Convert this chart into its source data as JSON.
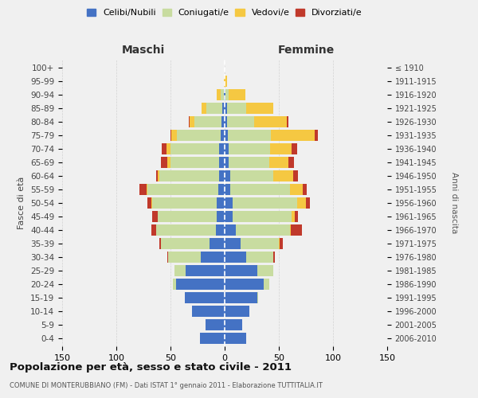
{
  "age_groups": [
    "0-4",
    "5-9",
    "10-14",
    "15-19",
    "20-24",
    "25-29",
    "30-34",
    "35-39",
    "40-44",
    "45-49",
    "50-54",
    "55-59",
    "60-64",
    "65-69",
    "70-74",
    "75-79",
    "80-84",
    "85-89",
    "90-94",
    "95-99",
    "100+"
  ],
  "birth_years": [
    "2006-2010",
    "2001-2005",
    "1996-2000",
    "1991-1995",
    "1986-1990",
    "1981-1985",
    "1976-1980",
    "1971-1975",
    "1966-1970",
    "1961-1965",
    "1956-1960",
    "1951-1955",
    "1946-1950",
    "1941-1945",
    "1936-1940",
    "1931-1935",
    "1926-1930",
    "1921-1925",
    "1916-1920",
    "1911-1915",
    "≤ 1910"
  ],
  "male_celibi": [
    23,
    18,
    30,
    37,
    45,
    36,
    22,
    14,
    8,
    7,
    7,
    6,
    5,
    5,
    5,
    4,
    3,
    2,
    1,
    0,
    0
  ],
  "male_coniugati": [
    0,
    0,
    0,
    0,
    3,
    10,
    30,
    45,
    55,
    55,
    60,
    65,
    55,
    45,
    45,
    40,
    25,
    15,
    3,
    0,
    0
  ],
  "male_vedovi": [
    0,
    0,
    0,
    0,
    0,
    0,
    0,
    0,
    0,
    0,
    1,
    1,
    2,
    3,
    4,
    5,
    4,
    4,
    3,
    1,
    0
  ],
  "male_divorziati": [
    0,
    0,
    0,
    0,
    0,
    0,
    1,
    1,
    5,
    5,
    3,
    7,
    1,
    6,
    4,
    1,
    1,
    0,
    0,
    0,
    0
  ],
  "female_celibi": [
    20,
    16,
    23,
    30,
    36,
    30,
    20,
    15,
    10,
    7,
    7,
    5,
    5,
    4,
    4,
    3,
    2,
    2,
    1,
    0,
    0
  ],
  "female_coniugati": [
    0,
    0,
    0,
    1,
    5,
    15,
    25,
    35,
    50,
    55,
    60,
    55,
    40,
    37,
    38,
    40,
    25,
    18,
    3,
    0,
    0
  ],
  "female_vedovi": [
    0,
    0,
    0,
    0,
    0,
    0,
    0,
    1,
    1,
    3,
    8,
    12,
    18,
    18,
    20,
    40,
    30,
    25,
    15,
    2,
    0
  ],
  "female_divorziati": [
    0,
    0,
    0,
    0,
    0,
    0,
    1,
    3,
    10,
    3,
    4,
    4,
    5,
    5,
    5,
    3,
    2,
    0,
    0,
    0,
    0
  ],
  "colors": {
    "celibi": "#4472c4",
    "coniugati": "#c8dca0",
    "vedovi": "#f5c842",
    "divorziati": "#c0392b"
  },
  "title": "Popolazione per età, sesso e stato civile - 2011",
  "subtitle": "COMUNE DI MONTERUBBIANO (FM) - Dati ISTAT 1° gennaio 2011 - Elaborazione TUTTITALIA.IT",
  "xlabel_left": "Maschi",
  "xlabel_right": "Femmine",
  "ylabel": "Fasce di età",
  "ylabel_right": "Anni di nascita",
  "xlim": 150,
  "bg_color": "#f0f0f0",
  "grid_color": "#d0d0d0"
}
